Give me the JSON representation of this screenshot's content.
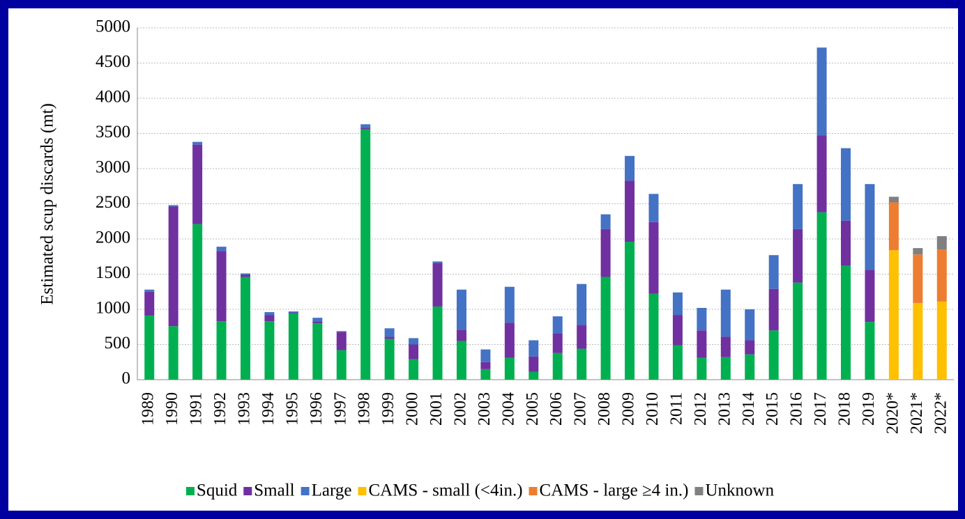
{
  "chart_data": {
    "type": "stacked_bar",
    "y_label": "Estimated scup discards (mt)",
    "categories": [
      "1989",
      "1990",
      "1991",
      "1992",
      "1993",
      "1994",
      "1995",
      "1996",
      "1997",
      "1998",
      "1999",
      "2000",
      "2001",
      "2002",
      "2003",
      "2004",
      "2005",
      "2006",
      "2007",
      "2008",
      "2009",
      "2010",
      "2011",
      "2012",
      "2013",
      "2014",
      "2015",
      "2016",
      "2017",
      "2018",
      "2019",
      "2020*",
      "2021*",
      "2022*"
    ],
    "series": [
      {
        "name": "Squid",
        "color": "#00b050",
        "values": [
          910,
          760,
          2210,
          830,
          1460,
          830,
          940,
          800,
          420,
          3560,
          580,
          290,
          1040,
          550,
          150,
          310,
          110,
          380,
          440,
          1460,
          1960,
          1220,
          490,
          310,
          320,
          360,
          700,
          1380,
          2380,
          1620,
          820,
          null,
          null,
          null
        ]
      },
      {
        "name": "Small",
        "color": "#7030a0",
        "values": [
          340,
          1700,
          1130,
          1000,
          30,
          90,
          10,
          30,
          260,
          20,
          30,
          210,
          620,
          160,
          100,
          500,
          220,
          280,
          340,
          680,
          870,
          1020,
          430,
          390,
          290,
          200,
          590,
          760,
          1090,
          640,
          740,
          null,
          null,
          null
        ]
      },
      {
        "name": "Large",
        "color": "#4472c4",
        "values": [
          30,
          20,
          40,
          60,
          20,
          40,
          20,
          50,
          10,
          50,
          120,
          90,
          20,
          570,
          180,
          510,
          230,
          240,
          580,
          210,
          350,
          400,
          320,
          320,
          670,
          440,
          480,
          640,
          1250,
          1030,
          1220,
          null,
          null,
          null
        ]
      },
      {
        "name": "CAMS - small (<4in.)",
        "color": "#ffc000",
        "values": [
          null,
          null,
          null,
          null,
          null,
          null,
          null,
          null,
          null,
          null,
          null,
          null,
          null,
          null,
          null,
          null,
          null,
          null,
          null,
          null,
          null,
          null,
          null,
          null,
          null,
          null,
          null,
          null,
          null,
          null,
          null,
          1840,
          1090,
          1110
        ]
      },
      {
        "name": "CAMS - large ≥4 in.)",
        "color": "#ed7d31",
        "values": [
          null,
          null,
          null,
          null,
          null,
          null,
          null,
          null,
          null,
          null,
          null,
          null,
          null,
          null,
          null,
          null,
          null,
          null,
          null,
          null,
          null,
          null,
          null,
          null,
          null,
          null,
          null,
          null,
          null,
          null,
          null,
          680,
          690,
          740
        ]
      },
      {
        "name": "Unknown",
        "color": "#808080",
        "values": [
          null,
          null,
          null,
          null,
          null,
          null,
          null,
          null,
          null,
          null,
          null,
          null,
          null,
          null,
          null,
          null,
          null,
          null,
          null,
          null,
          null,
          null,
          null,
          null,
          null,
          null,
          null,
          null,
          null,
          null,
          null,
          80,
          90,
          190
        ]
      }
    ],
    "ylim": [
      0,
      5000
    ],
    "yticks": [
      0,
      500,
      1000,
      1500,
      2000,
      2500,
      3000,
      3500,
      4000,
      4500,
      5000
    ],
    "grid": true
  }
}
